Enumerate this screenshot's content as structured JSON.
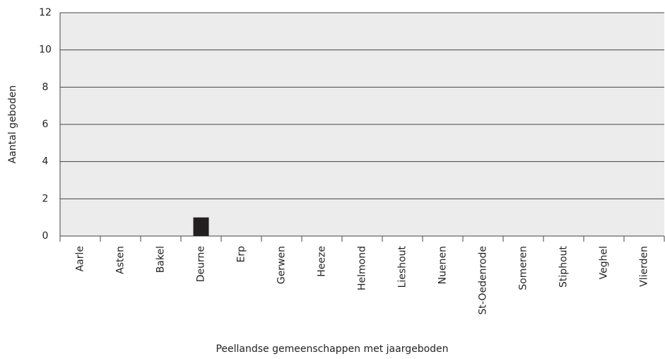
{
  "chart_data": {
    "type": "bar",
    "categories": [
      "Aarle",
      "Asten",
      "Bakel",
      "Deurne",
      "Erp",
      "Gerwen",
      "Heeze",
      "Helmond",
      "Lieshout",
      "Nuenen",
      "St-Oedenrode",
      "Someren",
      "Stiphout",
      "Veghel",
      "Vlierden"
    ],
    "values": [
      0,
      0,
      0,
      1,
      0,
      0,
      0,
      0,
      0,
      0,
      0,
      0,
      0,
      0,
      0
    ],
    "color": "#231f20",
    "ylim": [
      0,
      12
    ],
    "yticks": [
      0,
      2,
      4,
      6,
      8,
      10,
      12
    ],
    "grid": true,
    "x_label": "Peellandse gemeenschappen met jaargeboden",
    "y_label": "Aantal geboden"
  }
}
